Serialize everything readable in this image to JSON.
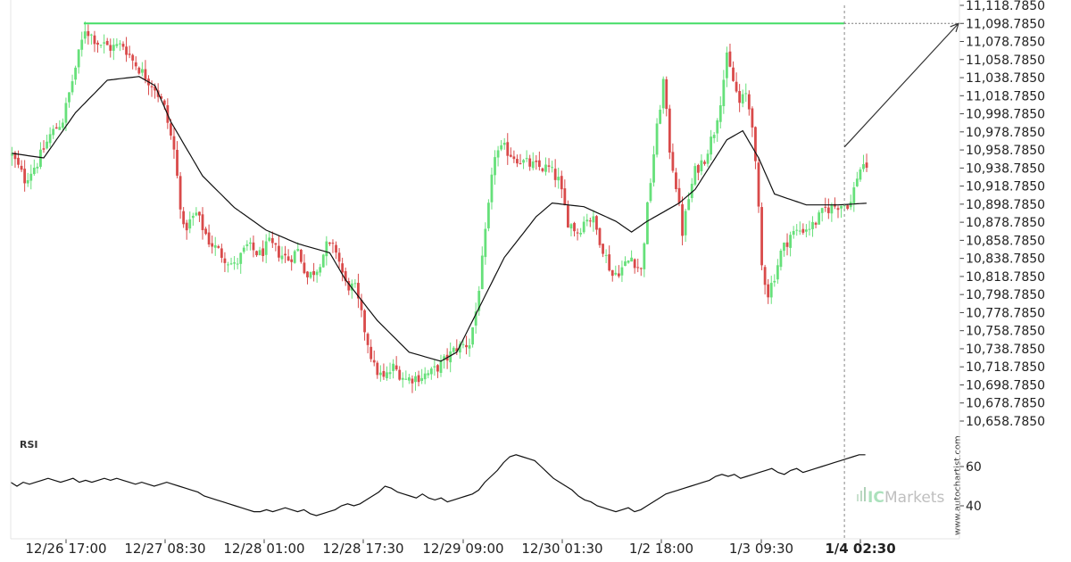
{
  "chart_data": [
    {
      "type": "candlestick",
      "title": "",
      "y_ticks": [
        "11,118.7850",
        "11,098.7850",
        "11,078.7850",
        "11,058.7850",
        "11,038.7850",
        "11,018.7850",
        "10,998.7850",
        "10,978.7850",
        "10,958.7850",
        "10,938.7850",
        "10,918.7850",
        "10,898.7850",
        "10,878.7850",
        "10,858.7850",
        "10,838.7850",
        "10,818.7850",
        "10,798.7850",
        "10,778.7850",
        "10,758.7850",
        "10,738.7850",
        "10,718.7850",
        "10,698.7850",
        "10,678.7850",
        "10,658.7850"
      ],
      "ylim": [
        10658.785,
        11118.785
      ],
      "x_ticks": [
        "12/26 17:00",
        "12/27 08:30",
        "12/28 01:00",
        "12/28 17:30",
        "12/29 09:00",
        "12/30 01:30",
        "1/2 18:00",
        "1/3 09:30",
        "1/4 02:30"
      ],
      "highlighted_x_tick": "1/4 02:30",
      "grid": false,
      "colors": {
        "up": "#66e07a",
        "down": "#d94a4a",
        "moving_average": "#111111",
        "resistance_line": "#44dd66",
        "projection": "#333333"
      },
      "resistance_level": 11098.785,
      "price_path": [
        [
          0,
          10953
        ],
        [
          4,
          10926
        ],
        [
          8,
          10945
        ],
        [
          12,
          10975
        ],
        [
          16,
          10992
        ],
        [
          20,
          11050
        ],
        [
          23,
          11093
        ],
        [
          27,
          11078
        ],
        [
          31,
          11072
        ],
        [
          35,
          11075
        ],
        [
          38,
          11058
        ],
        [
          42,
          11040
        ],
        [
          45,
          11028
        ],
        [
          48,
          11005
        ],
        [
          51,
          10958
        ],
        [
          54,
          10870
        ],
        [
          58,
          10888
        ],
        [
          62,
          10858
        ],
        [
          66,
          10843
        ],
        [
          70,
          10830
        ],
        [
          74,
          10852
        ],
        [
          78,
          10843
        ],
        [
          81,
          10855
        ],
        [
          84,
          10845
        ],
        [
          87,
          10838
        ],
        [
          90,
          10848
        ],
        [
          93,
          10818
        ],
        [
          96,
          10828
        ],
        [
          99,
          10852
        ],
        [
          102,
          10848
        ],
        [
          105,
          10810
        ],
        [
          108,
          10805
        ],
        [
          111,
          10760
        ],
        [
          114,
          10718
        ],
        [
          117,
          10705
        ],
        [
          120,
          10718
        ],
        [
          124,
          10705
        ],
        [
          128,
          10708
        ],
        [
          132,
          10712
        ],
        [
          136,
          10725
        ],
        [
          140,
          10740
        ],
        [
          144,
          10745
        ],
        [
          146,
          10780
        ],
        [
          148,
          10835
        ],
        [
          150,
          10895
        ],
        [
          152,
          10955
        ],
        [
          155,
          10960
        ],
        [
          158,
          10952
        ],
        [
          161,
          10945
        ],
        [
          165,
          10940
        ],
        [
          169,
          10938
        ],
        [
          172,
          10925
        ],
        [
          175,
          10880
        ],
        [
          178,
          10868
        ],
        [
          181,
          10885
        ],
        [
          183,
          10880
        ],
        [
          186,
          10850
        ],
        [
          189,
          10820
        ],
        [
          192,
          10828
        ],
        [
          195,
          10840
        ],
        [
          198,
          10825
        ],
        [
          200,
          10895
        ],
        [
          202,
          10955
        ],
        [
          205,
          11035
        ],
        [
          207,
          10960
        ],
        [
          209,
          10920
        ],
        [
          211,
          10868
        ],
        [
          213,
          10905
        ],
        [
          215,
          10935
        ],
        [
          218,
          10950
        ],
        [
          221,
          10980
        ],
        [
          223,
          11015
        ],
        [
          225,
          11060
        ],
        [
          227,
          11035
        ],
        [
          229,
          11010
        ],
        [
          231,
          11020
        ],
        [
          233,
          10990
        ],
        [
          234,
          10940
        ],
        [
          235,
          10890
        ],
        [
          236,
          10830
        ],
        [
          238,
          10800
        ],
        [
          240,
          10820
        ],
        [
          242,
          10845
        ],
        [
          245,
          10865
        ],
        [
          248,
          10870
        ],
        [
          252,
          10875
        ],
        [
          256,
          10893
        ],
        [
          260,
          10898
        ],
        [
          264,
          10900
        ],
        [
          266,
          10930
        ],
        [
          268,
          10945
        ],
        [
          270,
          10920
        ]
      ],
      "moving_average_path": [
        [
          0,
          10955
        ],
        [
          10,
          10950
        ],
        [
          20,
          11000
        ],
        [
          30,
          11036
        ],
        [
          40,
          11040
        ],
        [
          45,
          11030
        ],
        [
          50,
          10990
        ],
        [
          60,
          10930
        ],
        [
          70,
          10895
        ],
        [
          80,
          10870
        ],
        [
          90,
          10855
        ],
        [
          100,
          10845
        ],
        [
          105,
          10815
        ],
        [
          115,
          10770
        ],
        [
          125,
          10735
        ],
        [
          135,
          10725
        ],
        [
          140,
          10735
        ],
        [
          145,
          10770
        ],
        [
          155,
          10840
        ],
        [
          165,
          10885
        ],
        [
          170,
          10900
        ],
        [
          180,
          10896
        ],
        [
          190,
          10880
        ],
        [
          195,
          10868
        ],
        [
          200,
          10880
        ],
        [
          210,
          10900
        ],
        [
          215,
          10915
        ],
        [
          225,
          10970
        ],
        [
          230,
          10980
        ],
        [
          235,
          10950
        ],
        [
          240,
          10910
        ],
        [
          250,
          10898
        ],
        [
          260,
          10898
        ],
        [
          270,
          10900
        ]
      ],
      "projection": {
        "from": [
          262,
          10962
        ],
        "to": [
          302,
          11098.785
        ]
      },
      "forecast_start_index": 262,
      "candle_count": 270
    },
    {
      "type": "line",
      "title": "RSI",
      "y_ticks": [
        "60",
        "40"
      ],
      "ylim": [
        25,
        75
      ],
      "series": [
        {
          "values": [
            52,
            50,
            52,
            51,
            52,
            53,
            54,
            53,
            52,
            53,
            54,
            52,
            53,
            52,
            53,
            54,
            53,
            54,
            53,
            52,
            51,
            52,
            51,
            50,
            51,
            52,
            51,
            50,
            49,
            48,
            47,
            45,
            44,
            43,
            42,
            41,
            40,
            39,
            38,
            37,
            37,
            38,
            37,
            38,
            39,
            38,
            37,
            38,
            36,
            35,
            36,
            37,
            38,
            40,
            41,
            40,
            41,
            43,
            45,
            47,
            50,
            49,
            47,
            46,
            45,
            44,
            46,
            44,
            43,
            44,
            42,
            43,
            44,
            45,
            46,
            48,
            52,
            55,
            58,
            62,
            65,
            66,
            65,
            64,
            63,
            60,
            57,
            54,
            52,
            50,
            48,
            45,
            43,
            42,
            40,
            39,
            38,
            37,
            38,
            39,
            37,
            38,
            40,
            42,
            44,
            46,
            47,
            48,
            49,
            50,
            51,
            52,
            53,
            55,
            56,
            55,
            56,
            54,
            55,
            56,
            57,
            58,
            59,
            57,
            56,
            58,
            59,
            57,
            58,
            59,
            60,
            61,
            62,
            63,
            64,
            65,
            66,
            66
          ]
        }
      ]
    }
  ],
  "watermark": {
    "brand": "ICMarkets",
    "brand_muted": "IC",
    "brand_rest": "Markets",
    "side_text": "www.autochartist.com"
  }
}
